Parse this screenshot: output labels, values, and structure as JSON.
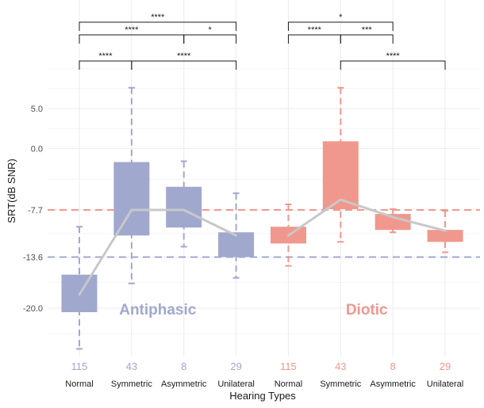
{
  "chart_data": {
    "type": "box",
    "xlabel": "Hearing Types",
    "ylabel": "SRT(dB SNR)",
    "ylim": [
      -28.2,
      10.5
    ],
    "yticks": [
      {
        "value": 5.0,
        "label": "5.0"
      },
      {
        "value": 0.0,
        "label": "0.0"
      },
      {
        "value": -7.7,
        "label": "-7.7"
      },
      {
        "value": -13.6,
        "label": "-13.6"
      },
      {
        "value": -20.0,
        "label": "-20.0"
      }
    ],
    "colors": {
      "antiphasic": "#a1a8ce",
      "diotic": "#f0988e",
      "mean_line": "#c8c8c8",
      "grid": "#ebebeb"
    },
    "reference_lines": [
      {
        "y": -7.7,
        "color": "#f0988e"
      },
      {
        "y": -13.6,
        "color": "#a1a8ce"
      }
    ],
    "groups": [
      {
        "name": "Antiphasic",
        "color": "#a1a8ce",
        "categories": [
          {
            "label": "Normal",
            "n": "115",
            "whisker_low": -25.1,
            "q1": -20.5,
            "q3": -15.8,
            "whisker_high": -9.8,
            "mean": -18.3
          },
          {
            "label": "Symmetric",
            "n": "43",
            "whisker_low": -16.9,
            "q1": -10.9,
            "q3": -1.7,
            "whisker_high": 7.6,
            "mean": -7.7
          },
          {
            "label": "Asymmetric",
            "n": "8",
            "whisker_low": -12.3,
            "q1": -9.9,
            "q3": -4.8,
            "whisker_high": -1.6,
            "mean": -7.7
          },
          {
            "label": "Unilateral",
            "n": "29",
            "whisker_low": -16.2,
            "q1": -13.6,
            "q3": -10.5,
            "whisker_high": -5.6,
            "mean": -10.9
          }
        ]
      },
      {
        "name": "Diotic",
        "color": "#f0988e",
        "categories": [
          {
            "label": "Normal",
            "n": "115",
            "whisker_low": -14.7,
            "q1": -11.9,
            "q3": -9.8,
            "whisker_high": -7.0,
            "mean": -10.9
          },
          {
            "label": "Symmetric",
            "n": "43",
            "whisker_low": -11.7,
            "q1": -7.6,
            "q3": 0.9,
            "whisker_high": 7.6,
            "mean": -6.4
          },
          {
            "label": "Asymmetric",
            "n": "8",
            "whisker_low": -10.5,
            "q1": -10.2,
            "q3": -8.2,
            "whisker_high": -7.6,
            "mean": -8.6
          },
          {
            "label": "Unilateral",
            "n": "29",
            "whisker_low": -13.0,
            "q1": -11.7,
            "q3": -10.2,
            "whisker_high": -7.8,
            "mean": -10.3
          }
        ]
      }
    ],
    "significance": [
      {
        "from": 0,
        "to": 1,
        "label": "****",
        "level": 0
      },
      {
        "from": 1,
        "to": 3,
        "label": "****",
        "level": 0
      },
      {
        "from": 5,
        "to": 7,
        "label": "****",
        "level": 0
      },
      {
        "from": 0,
        "to": 2,
        "label": "****",
        "level": 1
      },
      {
        "from": 2,
        "to": 3,
        "label": "*",
        "level": 1
      },
      {
        "from": 4,
        "to": 5,
        "label": "****",
        "level": 1
      },
      {
        "from": 5,
        "to": 6,
        "label": "***",
        "level": 1
      },
      {
        "from": 0,
        "to": 3,
        "label": "****",
        "level": 2
      },
      {
        "from": 4,
        "to": 6,
        "label": "*",
        "level": 2
      }
    ],
    "legend": "none",
    "grid": true
  }
}
